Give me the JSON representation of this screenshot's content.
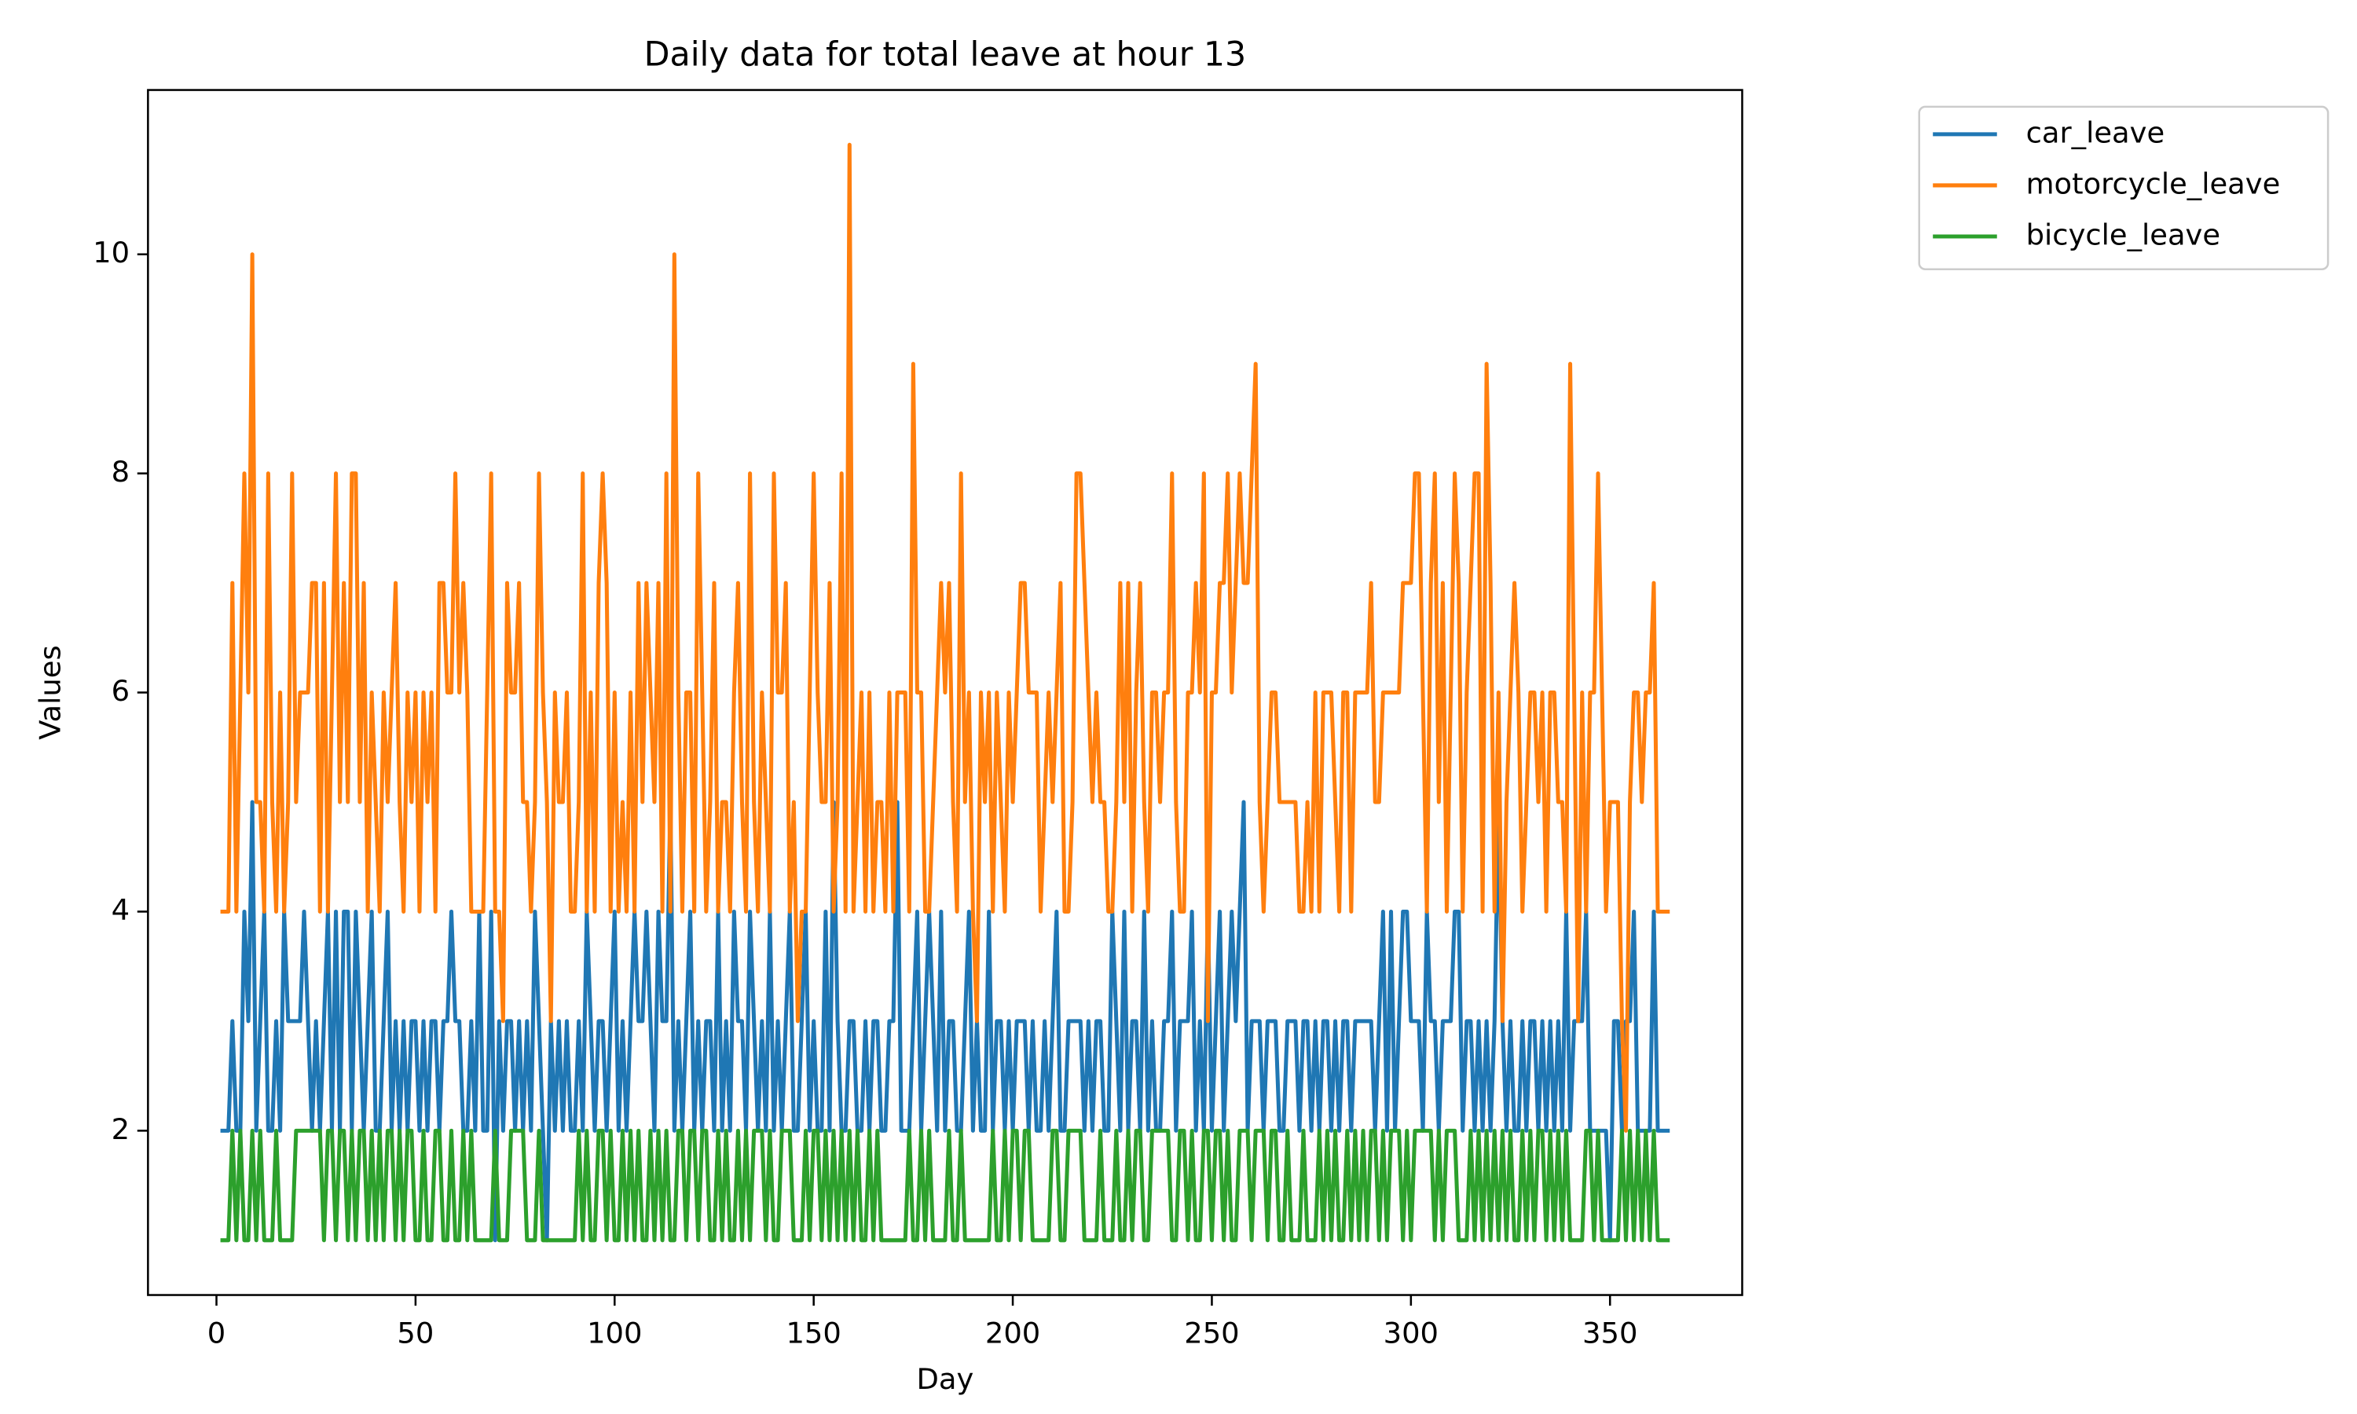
{
  "chart_data": {
    "type": "line",
    "title": "Daily data for total leave at hour 13",
    "x_label": "Day",
    "y_label": "Values",
    "xlim": [
      -17.2,
      383.2
    ],
    "ylim": [
      0.5,
      11.5
    ],
    "xticks": [
      0,
      50,
      100,
      150,
      200,
      250,
      300,
      350
    ],
    "yticks": [
      2,
      4,
      6,
      8,
      10
    ],
    "legend": "outside upper right",
    "x": [
      1,
      2,
      3,
      4,
      5,
      6,
      7,
      8,
      9,
      10,
      11,
      12,
      13,
      14,
      15,
      16,
      17,
      18,
      19,
      20,
      21,
      22,
      23,
      24,
      25,
      26,
      27,
      28,
      29,
      30,
      31,
      32,
      33,
      34,
      35,
      36,
      37,
      38,
      39,
      40,
      41,
      42,
      43,
      44,
      45,
      46,
      47,
      48,
      49,
      50,
      51,
      52,
      53,
      54,
      55,
      56,
      57,
      58,
      59,
      60,
      61,
      62,
      63,
      64,
      65,
      66,
      67,
      68,
      69,
      70,
      71,
      72,
      73,
      74,
      75,
      76,
      77,
      78,
      79,
      80,
      81,
      82,
      83,
      84,
      85,
      86,
      87,
      88,
      89,
      90,
      91,
      92,
      93,
      94,
      95,
      96,
      97,
      98,
      99,
      100,
      101,
      102,
      103,
      104,
      105,
      106,
      107,
      108,
      109,
      110,
      111,
      112,
      113,
      114,
      115,
      116,
      117,
      118,
      119,
      120,
      121,
      122,
      123,
      124,
      125,
      126,
      127,
      128,
      129,
      130,
      131,
      132,
      133,
      134,
      135,
      136,
      137,
      138,
      139,
      140,
      141,
      142,
      143,
      144,
      145,
      146,
      147,
      148,
      149,
      150,
      151,
      152,
      153,
      154,
      155,
      156,
      157,
      158,
      159,
      160,
      161,
      162,
      163,
      164,
      165,
      166,
      167,
      168,
      169,
      170,
      171,
      172,
      173,
      174,
      175,
      176,
      177,
      178,
      179,
      180,
      181,
      182,
      183,
      184,
      185,
      186,
      187,
      188,
      189,
      190,
      191,
      192,
      193,
      194,
      195,
      196,
      197,
      198,
      199,
      200,
      201,
      202,
      203,
      204,
      205,
      206,
      207,
      208,
      209,
      210,
      211,
      212,
      213,
      214,
      215,
      216,
      217,
      218,
      219,
      220,
      221,
      222,
      223,
      224,
      225,
      226,
      227,
      228,
      229,
      230,
      231,
      232,
      233,
      234,
      235,
      236,
      237,
      238,
      239,
      240,
      241,
      242,
      243,
      244,
      245,
      246,
      247,
      248,
      249,
      250,
      251,
      252,
      253,
      254,
      255,
      256,
      257,
      258,
      259,
      260,
      261,
      262,
      263,
      264,
      265,
      266,
      267,
      268,
      269,
      270,
      271,
      272,
      273,
      274,
      275,
      276,
      277,
      278,
      279,
      280,
      281,
      282,
      283,
      284,
      285,
      286,
      287,
      288,
      289,
      290,
      291,
      292,
      293,
      294,
      295,
      296,
      297,
      298,
      299,
      300,
      301,
      302,
      303,
      304,
      305,
      306,
      307,
      308,
      309,
      310,
      311,
      312,
      313,
      314,
      315,
      316,
      317,
      318,
      319,
      320,
      321,
      322,
      323,
      324,
      325,
      326,
      327,
      328,
      329,
      330,
      331,
      332,
      333,
      334,
      335,
      336,
      337,
      338,
      339,
      340,
      341,
      342,
      343,
      344,
      345,
      346,
      347,
      348,
      349,
      350,
      351,
      352,
      353,
      354,
      355,
      356,
      357,
      358,
      359,
      360,
      361,
      362,
      363,
      364,
      365
    ],
    "series": [
      {
        "name": "car_leave",
        "color": "#1f77b4",
        "values": [
          2,
          2,
          2,
          3,
          2,
          2,
          4,
          3,
          5,
          2,
          3,
          4,
          2,
          2,
          3,
          2,
          4,
          3,
          3,
          3,
          3,
          4,
          3,
          2,
          3,
          2,
          3,
          4,
          2,
          4,
          2,
          4,
          4,
          2,
          4,
          3,
          2,
          3,
          4,
          2,
          2,
          3,
          4,
          2,
          3,
          2,
          3,
          2,
          3,
          3,
          2,
          3,
          2,
          3,
          3,
          2,
          3,
          3,
          4,
          3,
          3,
          2,
          2,
          3,
          2,
          4,
          2,
          2,
          4,
          1,
          3,
          2,
          3,
          3,
          2,
          3,
          2,
          3,
          2,
          4,
          3,
          2,
          1,
          3,
          2,
          3,
          2,
          3,
          2,
          2,
          3,
          2,
          4,
          3,
          2,
          3,
          3,
          2,
          3,
          4,
          2,
          3,
          2,
          3,
          4,
          3,
          3,
          4,
          3,
          2,
          4,
          3,
          3,
          5,
          2,
          3,
          2,
          3,
          4,
          2,
          3,
          2,
          3,
          3,
          2,
          4,
          2,
          3,
          2,
          4,
          3,
          3,
          2,
          4,
          3,
          2,
          3,
          2,
          4,
          2,
          3,
          2,
          3,
          4,
          2,
          2,
          3,
          4,
          2,
          3,
          2,
          2,
          4,
          2,
          5,
          3,
          2,
          2,
          3,
          3,
          2,
          2,
          3,
          2,
          3,
          3,
          2,
          2,
          3,
          3,
          5,
          2,
          2,
          2,
          3,
          4,
          2,
          3,
          4,
          3,
          2,
          4,
          2,
          3,
          3,
          2,
          2,
          3,
          4,
          2,
          3,
          2,
          2,
          4,
          2,
          3,
          3,
          2,
          3,
          2,
          3,
          3,
          3,
          2,
          3,
          2,
          2,
          3,
          2,
          3,
          4,
          2,
          2,
          3,
          3,
          3,
          3,
          2,
          3,
          2,
          3,
          3,
          2,
          2,
          4,
          3,
          2,
          4,
          2,
          3,
          3,
          2,
          4,
          2,
          3,
          2,
          2,
          3,
          3,
          4,
          2,
          3,
          3,
          3,
          4,
          2,
          3,
          2,
          4,
          2,
          3,
          4,
          2,
          3,
          4,
          3,
          4,
          5,
          2,
          3,
          3,
          3,
          2,
          3,
          3,
          3,
          2,
          2,
          3,
          3,
          3,
          2,
          3,
          3,
          2,
          3,
          2,
          3,
          3,
          2,
          3,
          2,
          3,
          3,
          2,
          3,
          3,
          3,
          3,
          3,
          2,
          3,
          4,
          2,
          4,
          2,
          3,
          4,
          4,
          3,
          3,
          3,
          2,
          4,
          3,
          3,
          2,
          3,
          3,
          3,
          4,
          4,
          2,
          3,
          3,
          2,
          3,
          2,
          3,
          2,
          3,
          5,
          3,
          2,
          3,
          2,
          2,
          3,
          2,
          3,
          3,
          2,
          3,
          2,
          3,
          2,
          3,
          2,
          4,
          2,
          3,
          3,
          3,
          4,
          2,
          2,
          2,
          2,
          2,
          1,
          3,
          3,
          2,
          3,
          3,
          4,
          2,
          2,
          2,
          2,
          4,
          2,
          2,
          2,
          2
        ]
      },
      {
        "name": "motorcycle_leave",
        "color": "#ff7f0e",
        "values": [
          4,
          4,
          4,
          7,
          4,
          6,
          8,
          6,
          10,
          5,
          5,
          4,
          8,
          5,
          4,
          6,
          4,
          5,
          8,
          5,
          6,
          6,
          6,
          7,
          7,
          4,
          7,
          4,
          6,
          8,
          5,
          7,
          5,
          8,
          8,
          5,
          7,
          4,
          6,
          5,
          4,
          6,
          5,
          6,
          7,
          5,
          4,
          6,
          5,
          6,
          4,
          6,
          5,
          6,
          4,
          7,
          7,
          6,
          6,
          8,
          6,
          7,
          6,
          4,
          4,
          4,
          4,
          6,
          8,
          4,
          4,
          3,
          7,
          6,
          6,
          7,
          5,
          5,
          4,
          5,
          8,
          6,
          5,
          3,
          6,
          5,
          5,
          6,
          4,
          4,
          5,
          8,
          4,
          6,
          4,
          7,
          8,
          7,
          4,
          6,
          4,
          5,
          4,
          6,
          4,
          7,
          5,
          7,
          6,
          5,
          7,
          4,
          8,
          4,
          10,
          6,
          4,
          6,
          6,
          4,
          8,
          6,
          4,
          5,
          7,
          4,
          5,
          5,
          4,
          6,
          7,
          5,
          4,
          8,
          5,
          4,
          6,
          5,
          4,
          8,
          6,
          6,
          7,
          4,
          5,
          3,
          4,
          4,
          6,
          8,
          6,
          5,
          5,
          7,
          4,
          5,
          8,
          4,
          11,
          4,
          5,
          6,
          4,
          6,
          4,
          5,
          5,
          4,
          6,
          4,
          6,
          6,
          6,
          4,
          9,
          6,
          6,
          4,
          4,
          5,
          6,
          7,
          6,
          7,
          5,
          4,
          8,
          5,
          6,
          4,
          3,
          6,
          5,
          6,
          4,
          6,
          5,
          4,
          6,
          5,
          6,
          7,
          7,
          6,
          6,
          6,
          4,
          5,
          6,
          5,
          6,
          7,
          4,
          4,
          5,
          8,
          8,
          7,
          6,
          5,
          6,
          5,
          5,
          4,
          4,
          5,
          7,
          5,
          7,
          4,
          6,
          7,
          5,
          4,
          6,
          6,
          5,
          6,
          6,
          8,
          5,
          4,
          4,
          6,
          6,
          7,
          6,
          8,
          3,
          6,
          6,
          7,
          7,
          8,
          6,
          7,
          8,
          7,
          7,
          8,
          9,
          5,
          4,
          5,
          6,
          6,
          5,
          5,
          5,
          5,
          5,
          4,
          4,
          5,
          4,
          6,
          4,
          6,
          6,
          6,
          5,
          4,
          6,
          6,
          4,
          6,
          6,
          6,
          6,
          7,
          5,
          5,
          6,
          6,
          6,
          6,
          6,
          7,
          7,
          7,
          8,
          8,
          6,
          4,
          7,
          8,
          5,
          7,
          4,
          6,
          8,
          7,
          4,
          6,
          7,
          8,
          8,
          4,
          9,
          7,
          4,
          6,
          3,
          5,
          6,
          7,
          6,
          4,
          5,
          6,
          6,
          5,
          6,
          4,
          6,
          6,
          5,
          5,
          4,
          9,
          6,
          3,
          6,
          4,
          6,
          6,
          8,
          6,
          4,
          5,
          5,
          5,
          3,
          2,
          5,
          6,
          6,
          5,
          6,
          6,
          7,
          4,
          4,
          4,
          4
        ]
      },
      {
        "name": "bicycle_leave",
        "color": "#2ca02c",
        "values": [
          1,
          1,
          1,
          2,
          1,
          2,
          1,
          1,
          2,
          1,
          2,
          1,
          1,
          1,
          2,
          1,
          1,
          1,
          1,
          2,
          2,
          2,
          2,
          2,
          2,
          2,
          1,
          2,
          2,
          1,
          2,
          2,
          1,
          2,
          1,
          2,
          2,
          1,
          2,
          1,
          2,
          1,
          2,
          2,
          1,
          2,
          1,
          2,
          2,
          1,
          1,
          2,
          1,
          1,
          2,
          2,
          1,
          1,
          2,
          1,
          1,
          2,
          1,
          2,
          1,
          1,
          1,
          1,
          1,
          2,
          1,
          1,
          1,
          2,
          2,
          2,
          2,
          1,
          1,
          1,
          2,
          1,
          1,
          1,
          1,
          1,
          1,
          1,
          1,
          1,
          2,
          1,
          2,
          1,
          1,
          2,
          2,
          1,
          2,
          1,
          1,
          2,
          1,
          2,
          1,
          2,
          1,
          1,
          2,
          1,
          2,
          1,
          2,
          1,
          1,
          2,
          2,
          1,
          2,
          2,
          1,
          2,
          2,
          1,
          1,
          2,
          1,
          2,
          1,
          1,
          2,
          1,
          2,
          1,
          2,
          2,
          2,
          1,
          2,
          1,
          1,
          2,
          2,
          2,
          1,
          1,
          1,
          2,
          1,
          2,
          2,
          1,
          2,
          1,
          2,
          1,
          2,
          1,
          2,
          1,
          2,
          1,
          1,
          2,
          1,
          2,
          1,
          1,
          1,
          1,
          1,
          1,
          1,
          2,
          1,
          1,
          2,
          1,
          2,
          1,
          1,
          1,
          1,
          2,
          1,
          1,
          2,
          1,
          1,
          1,
          1,
          1,
          1,
          1,
          2,
          1,
          1,
          2,
          1,
          2,
          2,
          1,
          2,
          2,
          1,
          1,
          1,
          1,
          1,
          2,
          2,
          1,
          1,
          2,
          2,
          2,
          2,
          1,
          1,
          1,
          1,
          2,
          1,
          1,
          1,
          2,
          1,
          1,
          2,
          1,
          2,
          2,
          1,
          1,
          2,
          2,
          2,
          2,
          2,
          1,
          1,
          2,
          2,
          1,
          2,
          1,
          1,
          2,
          2,
          1,
          2,
          2,
          1,
          2,
          1,
          1,
          2,
          2,
          2,
          1,
          2,
          2,
          2,
          1,
          2,
          2,
          1,
          1,
          2,
          1,
          1,
          1,
          2,
          1,
          1,
          1,
          2,
          1,
          2,
          1,
          2,
          1,
          1,
          2,
          1,
          2,
          1,
          2,
          1,
          2,
          2,
          1,
          2,
          1,
          2,
          2,
          2,
          1,
          2,
          1,
          2,
          2,
          2,
          2,
          2,
          1,
          2,
          1,
          2,
          2,
          2,
          1,
          1,
          1,
          2,
          1,
          2,
          1,
          2,
          1,
          2,
          1,
          2,
          1,
          2,
          1,
          1,
          2,
          1,
          2,
          1,
          2,
          2,
          1,
          2,
          1,
          2,
          1,
          2,
          1,
          1,
          1,
          1,
          2,
          2,
          1,
          2,
          1,
          1,
          1,
          1,
          1,
          2,
          1,
          2,
          1,
          2,
          1,
          2,
          1,
          2,
          1,
          1,
          1,
          1
        ]
      }
    ]
  }
}
